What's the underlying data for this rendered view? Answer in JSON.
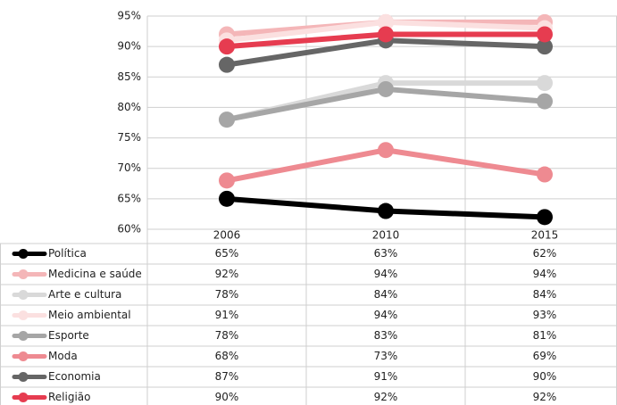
{
  "chart_data": {
    "type": "line",
    "categories": [
      "2006",
      "2010",
      "2015"
    ],
    "ylim": [
      60,
      95
    ],
    "yticks": [
      {
        "value": 60,
        "label": "60%"
      },
      {
        "value": 65,
        "label": "65%"
      },
      {
        "value": 70,
        "label": "70%"
      },
      {
        "value": 75,
        "label": "75%"
      },
      {
        "value": 80,
        "label": "80%"
      },
      {
        "value": 85,
        "label": "85%"
      },
      {
        "value": 90,
        "label": "90%"
      },
      {
        "value": 95,
        "label": "95%"
      }
    ],
    "grid": true,
    "series": [
      {
        "name": "Política",
        "color": "#000000",
        "values": [
          65,
          63,
          62
        ],
        "value_labels": [
          "65%",
          "63%",
          "62%"
        ]
      },
      {
        "name": "Medicina e saúde",
        "color": "#f4b6b8",
        "values": [
          92,
          94,
          94
        ],
        "value_labels": [
          "92%",
          "94%",
          "94%"
        ]
      },
      {
        "name": "Arte e cultura",
        "color": "#d9d9d9",
        "values": [
          78,
          84,
          84
        ],
        "value_labels": [
          "78%",
          "84%",
          "84%"
        ]
      },
      {
        "name": "Meio ambiental",
        "color": "#fbe0e0",
        "values": [
          91,
          94,
          93
        ],
        "value_labels": [
          "91%",
          "94%",
          "93%"
        ]
      },
      {
        "name": "Esporte",
        "color": "#a6a6a6",
        "values": [
          78,
          83,
          81
        ],
        "value_labels": [
          "78%",
          "83%",
          "81%"
        ]
      },
      {
        "name": "Moda",
        "color": "#ee8a91",
        "values": [
          68,
          73,
          69
        ],
        "value_labels": [
          "68%",
          "73%",
          "69%"
        ]
      },
      {
        "name": "Economia",
        "color": "#666666",
        "values": [
          87,
          91,
          90
        ],
        "value_labels": [
          "87%",
          "91%",
          "90%"
        ]
      },
      {
        "name": "Religião",
        "color": "#e63c50",
        "values": [
          90,
          92,
          92
        ],
        "value_labels": [
          "90%",
          "92%",
          "92%"
        ]
      }
    ]
  }
}
